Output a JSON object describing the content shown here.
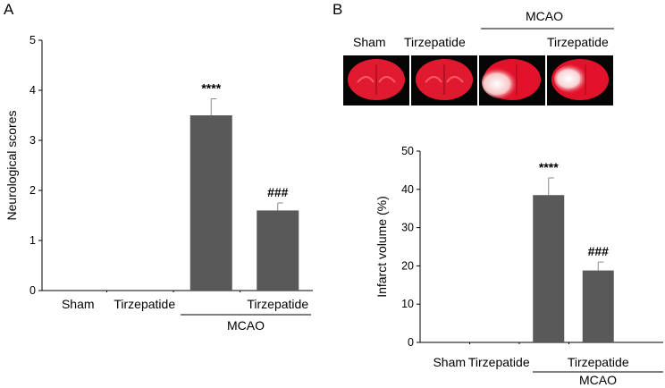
{
  "panels": [
    {
      "letter": "A"
    },
    {
      "letter": "B"
    }
  ],
  "images": {
    "header_group": "MCAO",
    "labels": [
      "Sham",
      "Tirzepatide",
      "",
      "Tirzepatide"
    ]
  },
  "chart_data": [
    {
      "type": "bar",
      "panel": "A",
      "categories": [
        "Sham",
        "Tirzepatide",
        "",
        "Tirzepatide"
      ],
      "group_label": "MCAO",
      "group_span": [
        2,
        3
      ],
      "values": [
        0,
        0,
        3.5,
        1.6
      ],
      "errors": [
        0,
        0,
        0.33,
        0.15
      ],
      "annotations": [
        "",
        "",
        "****",
        "###"
      ],
      "ylabel": "Neurological scores",
      "ylim": [
        0,
        5
      ],
      "yticks": [
        "0",
        "1",
        "2",
        "3",
        "4",
        "5"
      ],
      "bar_color": "#595959"
    },
    {
      "type": "bar",
      "panel": "B",
      "categories": [
        "Sham",
        "Tirzepatide",
        "",
        "Tirzepatide"
      ],
      "group_label": "MCAO",
      "group_span": [
        2,
        3
      ],
      "values": [
        0,
        0,
        38.5,
        18.8
      ],
      "errors": [
        0,
        0,
        4.5,
        2.2
      ],
      "annotations": [
        "",
        "",
        "****",
        "###"
      ],
      "ylabel": "Infarct volume (%)",
      "ylim": [
        0,
        50
      ],
      "yticks": [
        "0",
        "10",
        "20",
        "30",
        "40",
        "50"
      ],
      "bar_color": "#595959"
    }
  ]
}
